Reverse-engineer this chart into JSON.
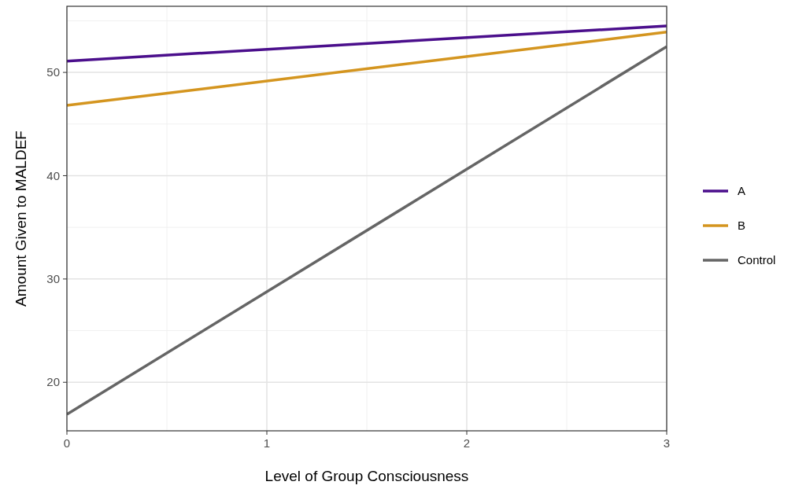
{
  "chart_data": {
    "type": "line",
    "xlabel": "Level of Group Consciousness",
    "ylabel": "Amount Given to MALDEF",
    "x": [
      0,
      3
    ],
    "series": [
      {
        "name": "A",
        "color": "#4b0f8c",
        "values": [
          51.1,
          54.5
        ]
      },
      {
        "name": "B",
        "color": "#d4951f",
        "values": [
          46.8,
          53.9
        ]
      },
      {
        "name": "Control",
        "color": "#656565",
        "values": [
          16.9,
          52.5
        ]
      }
    ],
    "xlim": [
      0,
      3
    ],
    "xticks": [
      0,
      1,
      2,
      3
    ],
    "ylim": [
      15.3,
      56.4
    ],
    "yticks": [
      20,
      30,
      40,
      50
    ],
    "grid": true,
    "legend": "right",
    "line_style": "solid",
    "marker": "none"
  }
}
